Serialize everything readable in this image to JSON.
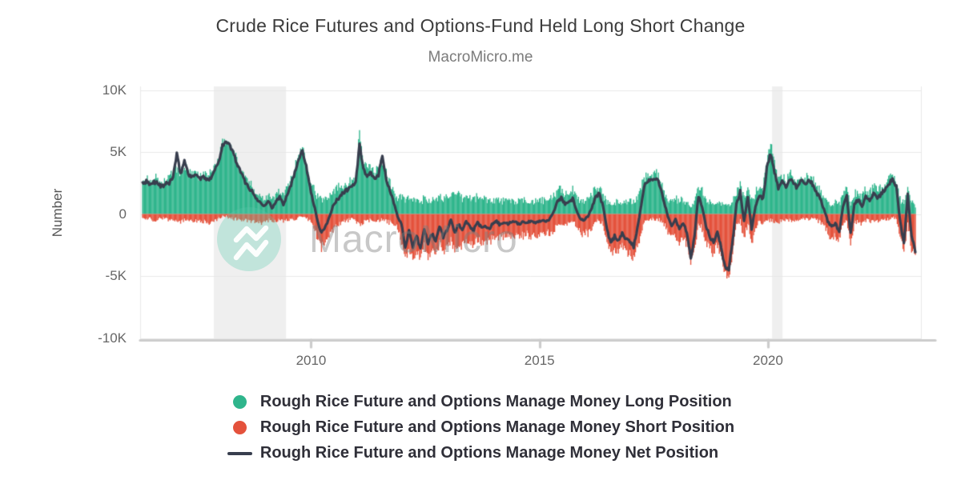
{
  "header": {
    "title": "Crude Rice Futures and Options-Fund Held Long Short Change",
    "subtitle": "MacroMicro.me"
  },
  "axes": {
    "y_title": "Number",
    "y_ticks": [
      {
        "label": "10K",
        "value": 10
      },
      {
        "label": "5K",
        "value": 5
      },
      {
        "label": "0",
        "value": 0
      },
      {
        "label": "-5K",
        "value": -5
      },
      {
        "label": "-10K",
        "value": -10
      }
    ],
    "x_ticks": [
      {
        "label": "2010",
        "value": 2010
      },
      {
        "label": "2015",
        "value": 2015
      },
      {
        "label": "2020",
        "value": 2020
      }
    ]
  },
  "legend": {
    "items": [
      {
        "label": "Rough Rice Future and Options Manage Money Long Position",
        "marker": "circle",
        "color": "#2fb58c"
      },
      {
        "label": "Rough Rice Future and Options Manage Money Short Position",
        "marker": "circle",
        "color": "#e4523c"
      },
      {
        "label": "Rough Rice Future and Options Manage Money Net Position",
        "marker": "line",
        "color": "#383e4e"
      }
    ]
  },
  "watermark": {
    "text": "MacroMicro",
    "logo": "macromicro-m-icon"
  },
  "chart_data": {
    "type": "bar+line",
    "title": "Crude Rice Futures and Options-Fund Held Long Short Change",
    "ylabel": "Number",
    "values_unit": "thousands (K)",
    "x_start_year": 2006.31,
    "x_step_years": 0.083333,
    "x_axis_range": [
      2006.31,
      2023.25
    ],
    "y_axis_range": [
      -10,
      10
    ],
    "grid": true,
    "legend_position": "bottom",
    "recession_bands": [
      [
        2007.87,
        2009.45
      ],
      [
        2020.09,
        2020.32
      ]
    ],
    "colors": {
      "long": "#2fb58c",
      "short": "#e4523c",
      "net": "#383e4e",
      "band": "#efefef",
      "grid": "#e8e8e8",
      "axis": "#cccccc"
    },
    "series": [
      {
        "name": "Rough Rice Future and Options Manage Money Long Position",
        "type": "bar",
        "color": "#2fb58c",
        "values": [
          2.6,
          2.9,
          2.7,
          3.0,
          2.8,
          2.5,
          2.7,
          2.9,
          3.4,
          3.6,
          3.3,
          3.9,
          3.4,
          3.1,
          3.4,
          3.0,
          3.2,
          3.0,
          3.3,
          3.9,
          4.4,
          5.7,
          5.9,
          5.6,
          5.0,
          4.2,
          3.5,
          2.9,
          2.5,
          2.1,
          1.7,
          1.4,
          1.3,
          1.6,
          1.1,
          1.5,
          1.9,
          1.4,
          2.1,
          2.9,
          3.7,
          4.8,
          5.5,
          4.2,
          2.9,
          2.1,
          1.4,
          1.1,
          1.3,
          1.6,
          1.9,
          2.1,
          2.3,
          2.4,
          2.5,
          2.7,
          3.0,
          6.6,
          4.2,
          3.6,
          3.8,
          3.4,
          3.7,
          4.3,
          3.4,
          2.5,
          1.8,
          1.2,
          1.4,
          1.1,
          1.3,
          1.0,
          1.2,
          0.9,
          1.3,
          1.1,
          1.2,
          1.0,
          1.4,
          1.2,
          1.5,
          1.7,
          1.3,
          1.5,
          1.2,
          1.4,
          1.3,
          1.2,
          1.4,
          1.2,
          1.3,
          1.1,
          1.1,
          1.2,
          1.0,
          1.1,
          1.0,
          1.1,
          1.0,
          1.0,
          1.1,
          1.0,
          1.1,
          1.0,
          1.0,
          1.1,
          1.0,
          1.2,
          1.5,
          1.8,
          2.0,
          1.6,
          1.8,
          1.9,
          1.3,
          1.1,
          1.1,
          1.3,
          1.6,
          2.0,
          2.1,
          1.5,
          1.0,
          0.9,
          1.0,
          0.9,
          1.0,
          1.0,
          1.0,
          0.9,
          1.4,
          2.2,
          3.0,
          3.2,
          3.1,
          3.3,
          2.7,
          1.8,
          1.2,
          1.0,
          1.3,
          1.0,
          1.2,
          0.9,
          0.7,
          1.0,
          2.2,
          1.8,
          1.2,
          1.0,
          0.9,
          1.1,
          0.9,
          0.7,
          0.6,
          1.0,
          1.8,
          2.3,
          1.4,
          2.1,
          1.1,
          1.7,
          2.2,
          2.0,
          4.4,
          5.9,
          4.0,
          2.8,
          3.1,
          2.7,
          3.4,
          3.0,
          2.6,
          3.1,
          2.8,
          3.2,
          2.8,
          2.3,
          1.9,
          1.3,
          0.9,
          0.8,
          1.0,
          0.8,
          1.5,
          2.0,
          0.9,
          1.6,
          1.8,
          1.4,
          2.0,
          1.6,
          2.2,
          1.8,
          2.1,
          2.4,
          2.8,
          3.1,
          2.6,
          1.2,
          0.9,
          2.2,
          1.0,
          0.6
        ]
      },
      {
        "name": "Rough Rice Future and Options Manage Money Short Position",
        "type": "bar",
        "color": "#e4523c",
        "values": [
          -0.3,
          -0.4,
          -0.3,
          -0.5,
          -0.4,
          -0.3,
          -0.4,
          -0.5,
          -0.4,
          -0.5,
          -0.6,
          -0.5,
          -0.4,
          -0.5,
          -0.6,
          -0.5,
          -0.6,
          -0.7,
          -0.8,
          -0.6,
          -0.3,
          -0.2,
          -0.2,
          -0.3,
          -0.4,
          -0.4,
          -0.5,
          -0.5,
          -0.6,
          -0.6,
          -0.7,
          -0.8,
          -0.6,
          -0.5,
          -0.6,
          -0.5,
          -0.5,
          -0.6,
          -0.5,
          -0.4,
          -0.4,
          -0.3,
          -0.3,
          -0.4,
          -0.5,
          -1.1,
          -2.0,
          -2.7,
          -2.3,
          -1.8,
          -1.2,
          -0.9,
          -0.7,
          -0.6,
          -0.5,
          -0.4,
          -0.6,
          -0.8,
          -0.7,
          -0.6,
          -0.5,
          -0.5,
          -0.5,
          -0.5,
          -0.6,
          -0.7,
          -0.9,
          -1.1,
          -2.2,
          -3.8,
          -2.7,
          -3.6,
          -3.0,
          -3.7,
          -2.5,
          -3.5,
          -2.8,
          -3.2,
          -2.4,
          -3.0,
          -2.7,
          -2.1,
          -2.9,
          -2.3,
          -2.6,
          -2.0,
          -2.3,
          -2.5,
          -2.1,
          -2.3,
          -2.2,
          -2.3,
          -1.9,
          -1.8,
          -1.9,
          -1.8,
          -1.8,
          -1.7,
          -1.7,
          -1.8,
          -1.7,
          -1.7,
          -1.7,
          -1.7,
          -1.6,
          -1.6,
          -1.6,
          -1.6,
          -1.3,
          -0.8,
          -0.7,
          -0.8,
          -0.7,
          -0.7,
          -1.0,
          -1.5,
          -1.6,
          -1.5,
          -1.1,
          -0.6,
          -0.5,
          -0.9,
          -2.2,
          -3.2,
          -2.8,
          -3.1,
          -2.5,
          -3.0,
          -3.2,
          -3.5,
          -2.6,
          -1.4,
          -0.5,
          -0.4,
          -0.4,
          -0.4,
          -0.5,
          -0.8,
          -1.4,
          -1.9,
          -1.7,
          -2.2,
          -2.0,
          -2.4,
          -4.2,
          -2.8,
          -0.7,
          -1.2,
          -2.2,
          -2.8,
          -3.2,
          -2.5,
          -3.7,
          -4.9,
          -5.0,
          -3.2,
          -1.0,
          -0.5,
          -2.0,
          -0.7,
          -2.3,
          -1.1,
          -0.6,
          -0.8,
          -0.6,
          -0.5,
          -0.6,
          -0.7,
          -0.5,
          -0.5,
          -0.5,
          -0.5,
          -0.5,
          -0.4,
          -0.4,
          -0.4,
          -0.4,
          -0.5,
          -0.7,
          -0.9,
          -1.5,
          -1.9,
          -1.8,
          -2.2,
          -0.9,
          -0.6,
          -2.5,
          -0.8,
          -0.6,
          -0.8,
          -0.5,
          -0.6,
          -0.5,
          -0.6,
          -0.5,
          -0.4,
          -0.4,
          -0.3,
          -0.4,
          -1.8,
          -3.2,
          -0.6,
          -2.8,
          -3.4
        ]
      },
      {
        "name": "Rough Rice Future and Options Manage Money Net Position",
        "type": "line",
        "color": "#383e4e",
        "values": [
          2.4,
          2.6,
          2.3,
          2.6,
          2.5,
          2.2,
          2.4,
          2.5,
          3.0,
          4.8,
          3.2,
          4.3,
          3.3,
          2.9,
          3.3,
          2.8,
          3.0,
          2.7,
          3.0,
          3.6,
          4.2,
          5.6,
          5.8,
          5.5,
          4.8,
          3.9,
          3.2,
          2.6,
          2.1,
          1.7,
          1.2,
          0.9,
          0.7,
          1.1,
          0.5,
          0.9,
          1.4,
          0.8,
          1.6,
          2.4,
          3.3,
          4.5,
          5.2,
          3.8,
          2.2,
          0.8,
          -0.6,
          -1.6,
          -1.1,
          -0.3,
          0.6,
          1.1,
          1.5,
          1.8,
          2.0,
          2.3,
          2.5,
          5.6,
          3.6,
          3.0,
          3.3,
          2.8,
          3.2,
          4.7,
          2.9,
          1.8,
          0.9,
          -0.2,
          -0.8,
          -2.6,
          -1.4,
          -2.8,
          -1.8,
          -2.8,
          -1.2,
          -2.4,
          -1.6,
          -2.2,
          -1.0,
          -1.8,
          -1.3,
          -0.4,
          -1.6,
          -0.8,
          -1.4,
          -0.6,
          -1.0,
          -1.3,
          -0.7,
          -1.1,
          -0.9,
          -1.2,
          -0.8,
          -0.6,
          -0.9,
          -0.7,
          -0.8,
          -0.6,
          -0.7,
          -0.8,
          -0.6,
          -0.7,
          -0.6,
          -0.7,
          -0.6,
          -0.5,
          -0.6,
          -0.4,
          0.2,
          1.0,
          1.3,
          0.8,
          1.1,
          1.2,
          0.3,
          -0.4,
          -0.5,
          -0.2,
          0.5,
          1.4,
          1.6,
          0.6,
          -1.2,
          -2.4,
          -1.8,
          -2.2,
          -1.5,
          -2.0,
          -2.2,
          -2.6,
          -1.2,
          0.8,
          2.5,
          2.8,
          2.7,
          2.9,
          2.2,
          1.0,
          -0.2,
          -0.9,
          -0.4,
          -1.2,
          -0.8,
          -1.5,
          -3.6,
          -1.8,
          1.5,
          0.6,
          -1.0,
          -1.8,
          -2.3,
          -1.4,
          -2.8,
          -4.2,
          -4.5,
          -2.2,
          0.8,
          1.8,
          -0.6,
          1.4,
          -1.2,
          0.6,
          1.6,
          1.2,
          3.8,
          4.9,
          3.4,
          2.1,
          2.6,
          2.2,
          2.9,
          2.5,
          2.1,
          2.7,
          2.4,
          2.8,
          2.4,
          1.8,
          1.2,
          0.4,
          -0.6,
          -1.1,
          -0.8,
          -1.4,
          0.6,
          1.4,
          -1.6,
          0.8,
          1.2,
          0.6,
          1.5,
          1.0,
          1.7,
          1.2,
          1.6,
          2.0,
          2.4,
          2.8,
          2.2,
          -0.6,
          -2.3,
          1.6,
          -1.8,
          -3.0
        ]
      }
    ]
  }
}
